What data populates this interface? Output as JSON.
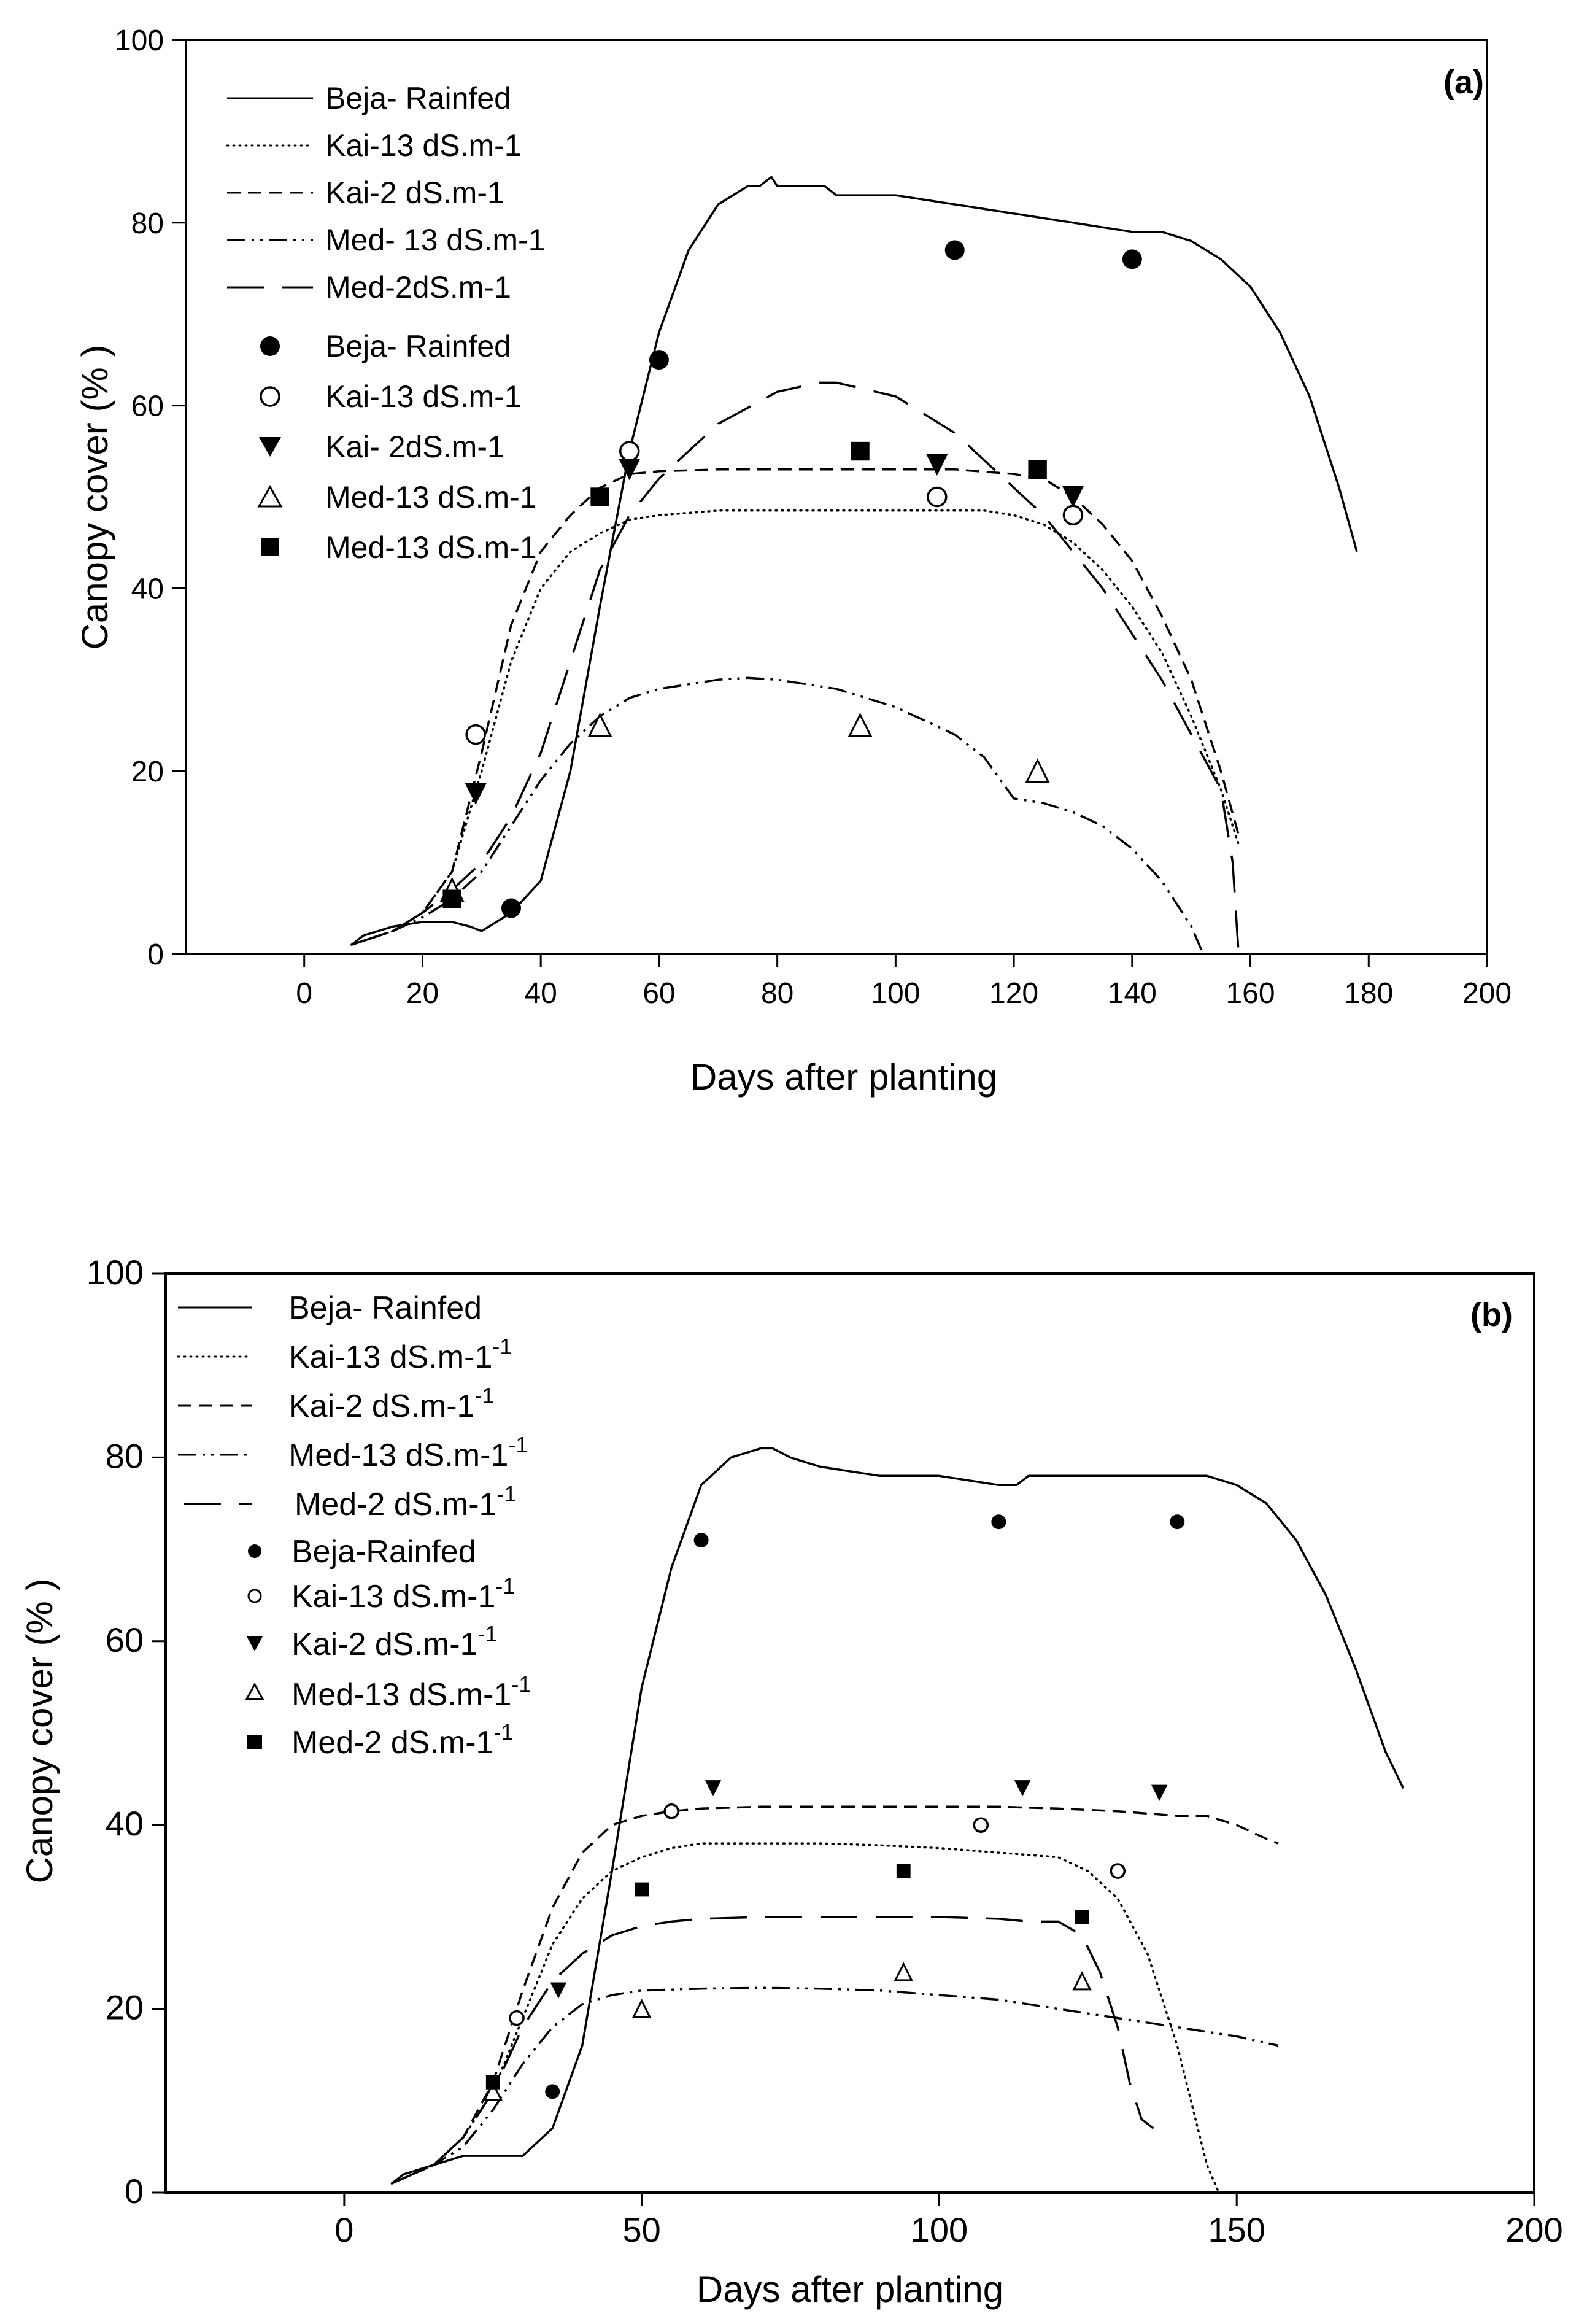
{
  "chart_data": [
    {
      "type": "line",
      "panel_label": "(a)",
      "xlabel": "Days after planting",
      "ylabel": "Canopy cover (% )",
      "xlim": [
        -20,
        200
      ],
      "ylim": [
        0,
        100
      ],
      "xticks": [
        "0",
        "20",
        "40",
        "60",
        "80",
        "100",
        "120",
        "140",
        "160",
        "180",
        "200"
      ],
      "yticks": [
        "0",
        "20",
        "40",
        "60",
        "80",
        "100"
      ],
      "grid": false,
      "legend_position": "top-left",
      "series": [
        {
          "name": "Beja- Rainfed",
          "kind": "line",
          "dash": "solid",
          "x": [
            8,
            10,
            15,
            20,
            25,
            28,
            30,
            35,
            40,
            45,
            50,
            55,
            60,
            65,
            70,
            75,
            77,
            79,
            80,
            85,
            88,
            90,
            100,
            110,
            120,
            130,
            140,
            145,
            150,
            155,
            160,
            165,
            170,
            175,
            178
          ],
          "y": [
            1,
            2,
            3,
            3.5,
            3.5,
            3,
            2.5,
            4.5,
            8,
            20,
            38,
            55,
            68,
            77,
            82,
            84,
            84,
            85,
            84,
            84,
            84,
            83,
            83,
            82,
            81,
            80,
            79,
            79,
            78,
            76,
            73,
            68,
            61,
            51,
            44
          ]
        },
        {
          "name": "Kai-13 dS.m-1",
          "kind": "line",
          "dash": "dotted",
          "x": [
            8,
            15,
            20,
            25,
            30,
            35,
            40,
            45,
            50,
            55,
            60,
            70,
            80,
            90,
            100,
            110,
            115,
            120,
            125,
            130,
            135,
            140,
            145,
            150,
            155,
            158
          ],
          "y": [
            1,
            2.5,
            4.5,
            9,
            20,
            32,
            40,
            44,
            46,
            47.5,
            48,
            48.5,
            48.5,
            48.5,
            48.5,
            48.5,
            48.5,
            48,
            47,
            45,
            42,
            38,
            33,
            26,
            18,
            12
          ]
        },
        {
          "name": "Kai-2 dS.m-1",
          "kind": "line",
          "dash": "dashed",
          "x": [
            8,
            15,
            20,
            25,
            30,
            35,
            40,
            45,
            50,
            55,
            60,
            70,
            80,
            90,
            100,
            110,
            120,
            125,
            130,
            135,
            140,
            145,
            150,
            155,
            158
          ],
          "y": [
            1,
            2.5,
            4.5,
            9,
            22,
            36,
            44,
            48,
            51,
            52.5,
            52.8,
            53,
            53,
            53,
            53,
            53,
            52.5,
            52,
            50,
            47,
            43,
            37,
            30,
            20,
            13
          ]
        },
        {
          "name": "Med- 13 dS.m-1",
          "kind": "line",
          "dash": "dash-dot-dot",
          "x": [
            8,
            15,
            20,
            25,
            30,
            35,
            40,
            45,
            50,
            55,
            60,
            70,
            75,
            80,
            90,
            100,
            110,
            115,
            120,
            125,
            130,
            135,
            140,
            145,
            150,
            152
          ],
          "y": [
            1,
            2.5,
            4,
            6,
            9,
            14,
            19,
            23,
            26,
            28,
            29,
            30,
            30.2,
            30,
            29,
            27,
            24,
            21.5,
            17,
            16.5,
            15.5,
            14,
            11.5,
            8,
            3,
            0
          ]
        },
        {
          "name": "Med-2dS.m-1",
          "kind": "line",
          "dash": "long-dash",
          "x": [
            8,
            15,
            20,
            25,
            30,
            35,
            40,
            45,
            50,
            55,
            60,
            70,
            80,
            87,
            90,
            100,
            110,
            115,
            120,
            125,
            130,
            135,
            140,
            145,
            150,
            155,
            157,
            158
          ],
          "y": [
            1,
            2.5,
            4.5,
            7,
            10,
            15,
            22,
            32,
            42,
            48,
            52,
            58,
            61.5,
            62.5,
            62.5,
            61,
            57,
            54,
            51,
            48,
            44,
            40,
            35,
            30,
            24,
            18,
            10,
            0
          ]
        },
        {
          "name": "Beja- Rainfed",
          "kind": "marker",
          "marker": "filled-circle",
          "x": [
            35,
            60,
            110,
            140
          ],
          "y": [
            5,
            65,
            77,
            76
          ]
        },
        {
          "name": "Kai-13 dS.m-1",
          "kind": "marker",
          "marker": "open-circle",
          "x": [
            29,
            55,
            107,
            130
          ],
          "y": [
            24,
            55,
            50,
            48
          ]
        },
        {
          "name": "Kai- 2dS.m-1",
          "kind": "marker",
          "marker": "filled-triangle-down",
          "x": [
            29,
            55,
            107,
            130
          ],
          "y": [
            17.5,
            53,
            53.5,
            50
          ]
        },
        {
          "name": "Med-13 dS.m-1",
          "kind": "marker",
          "marker": "open-triangle-up",
          "x": [
            25,
            50,
            94,
            124
          ],
          "y": [
            7,
            25,
            25,
            20
          ]
        },
        {
          "name": "Med-13 dS.m-1",
          "kind": "marker",
          "marker": "filled-square",
          "x": [
            25,
            50,
            94,
            124
          ],
          "y": [
            6,
            50,
            55,
            53
          ]
        }
      ]
    },
    {
      "type": "line",
      "panel_label": "(b)",
      "xlabel": "Days after planting",
      "ylabel": "Canopy cover (% )",
      "xlim": [
        -30,
        200
      ],
      "ylim": [
        0,
        100
      ],
      "xticks": [
        "0",
        "50",
        "100",
        "150",
        "200"
      ],
      "yticks": [
        "0",
        "20",
        "40",
        "60",
        "80",
        "100"
      ],
      "grid": false,
      "legend_position": "top-left",
      "series": [
        {
          "name": "Beja- Rainfed",
          "kind": "line",
          "dash": "solid",
          "x": [
            8,
            10,
            15,
            20,
            25,
            30,
            35,
            40,
            45,
            50,
            55,
            60,
            65,
            70,
            72,
            75,
            80,
            85,
            90,
            100,
            110,
            113,
            115,
            120,
            130,
            140,
            145,
            150,
            155,
            160,
            165,
            170,
            175,
            178
          ],
          "y": [
            1,
            2,
            3,
            4,
            4,
            4,
            7,
            16,
            35,
            55,
            68,
            77,
            80,
            81,
            81,
            80,
            79,
            78.5,
            78,
            78,
            77,
            77,
            78,
            78,
            78,
            78,
            78,
            77,
            75,
            71,
            65,
            57,
            48,
            44
          ]
        },
        {
          "name": "Kai-13 dS.m-1",
          "kind": "line",
          "dash": "dotted",
          "x": [
            8,
            15,
            20,
            25,
            30,
            35,
            40,
            45,
            50,
            55,
            60,
            70,
            80,
            90,
            100,
            110,
            120,
            125,
            130,
            135,
            140,
            145,
            147
          ],
          "y": [
            1,
            3,
            6,
            11,
            19,
            27,
            32,
            35,
            36.5,
            37.5,
            38,
            38,
            38,
            37.8,
            37.5,
            37,
            36.5,
            35,
            32,
            26,
            16,
            3,
            0
          ]
        },
        {
          "name": "Kai-2 dS.m-1",
          "kind": "line",
          "dash": "dashed",
          "x": [
            8,
            15,
            20,
            25,
            30,
            35,
            40,
            45,
            50,
            55,
            60,
            70,
            80,
            90,
            100,
            110,
            120,
            130,
            140,
            145,
            150,
            155,
            157
          ],
          "y": [
            1,
            3,
            6,
            12,
            22,
            31,
            37,
            40,
            41,
            41.5,
            41.8,
            42,
            42,
            42,
            42,
            42,
            41.8,
            41.5,
            41,
            41,
            40,
            38.5,
            38
          ]
        },
        {
          "name": "Med-13 dS.m-1",
          "kind": "line",
          "dash": "dash-dot-dot",
          "x": [
            8,
            15,
            20,
            25,
            30,
            35,
            40,
            45,
            50,
            60,
            70,
            80,
            90,
            100,
            110,
            120,
            130,
            140,
            150,
            157
          ],
          "y": [
            1,
            3,
            5,
            9,
            14,
            18,
            20.5,
            21.5,
            22,
            22.2,
            22.3,
            22.2,
            22,
            21.5,
            21,
            20,
            19,
            18,
            17,
            16
          ]
        },
        {
          "name": "Med-2 dS.m-1",
          "kind": "line",
          "dash": "long-dash",
          "x": [
            8,
            15,
            20,
            25,
            30,
            35,
            40,
            45,
            50,
            55,
            60,
            70,
            80,
            90,
            100,
            110,
            115,
            120,
            124,
            127,
            130,
            132,
            134,
            136
          ],
          "y": [
            1,
            3,
            6,
            11,
            18,
            23,
            26,
            28,
            29,
            29.5,
            29.8,
            30,
            30,
            30,
            30,
            29.8,
            29.5,
            29.5,
            28,
            24,
            18,
            12,
            8,
            7
          ]
        },
        {
          "name": "Beja-Rainfed",
          "kind": "marker",
          "marker": "filled-circle",
          "x": [
            35,
            60,
            110,
            140
          ],
          "y": [
            11,
            71,
            73,
            73
          ]
        },
        {
          "name": "Kai-13 dS.m-1",
          "kind": "marker",
          "marker": "open-circle",
          "x": [
            29,
            55,
            107,
            130
          ],
          "y": [
            19,
            41.5,
            40,
            35
          ]
        },
        {
          "name": "Kai-2 dS.m-1",
          "kind": "marker",
          "marker": "filled-triangle-down",
          "x": [
            36,
            62,
            114,
            137
          ],
          "y": [
            22,
            44,
            44,
            43.5
          ]
        },
        {
          "name": "Med-13 dS.m-1",
          "kind": "marker",
          "marker": "open-triangle-up",
          "x": [
            25,
            50,
            94,
            124
          ],
          "y": [
            11,
            20,
            24,
            23
          ]
        },
        {
          "name": "Med-2 dS.m-1",
          "kind": "marker",
          "marker": "filled-square",
          "x": [
            25,
            50,
            94,
            124
          ],
          "y": [
            12,
            33,
            35,
            30
          ]
        }
      ]
    }
  ],
  "legend_b_superscript": "-1"
}
